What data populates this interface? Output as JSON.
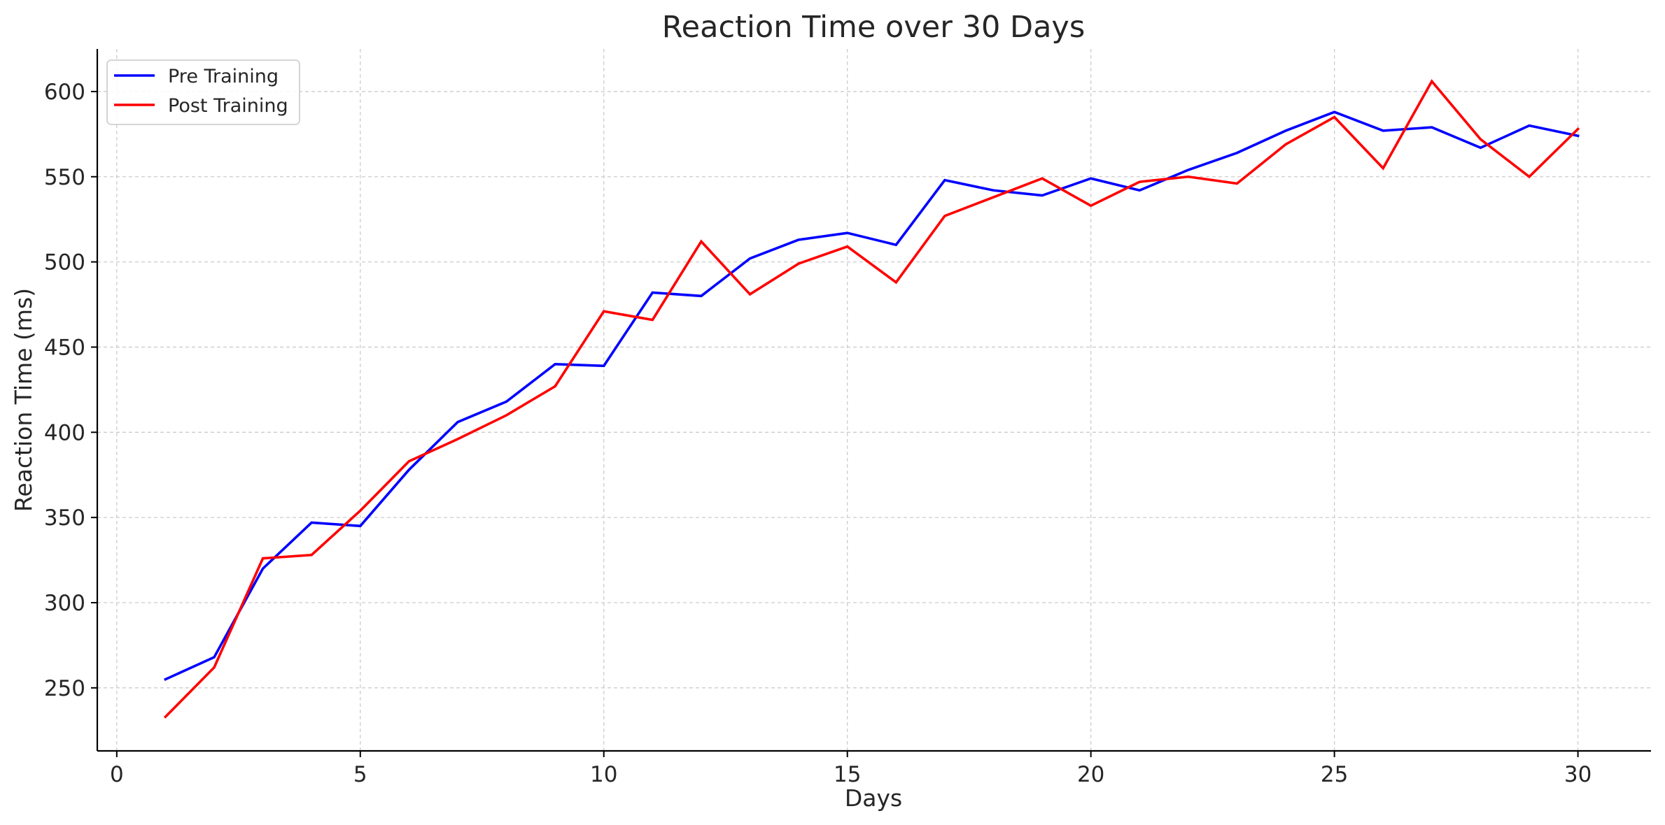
{
  "chart_data": {
    "type": "line",
    "title": "Reaction Time over 30 Days",
    "xlabel": "Days",
    "ylabel": "Reaction Time (ms)",
    "xlim": [
      -0.4,
      31.5
    ],
    "ylim": [
      213,
      625
    ],
    "xticks": [
      0,
      5,
      10,
      15,
      20,
      25,
      30
    ],
    "yticks": [
      250,
      300,
      350,
      400,
      450,
      500,
      550,
      600
    ],
    "grid": true,
    "legend_position": "top-left",
    "x": [
      1,
      2,
      3,
      4,
      5,
      6,
      7,
      8,
      9,
      10,
      11,
      12,
      13,
      14,
      15,
      16,
      17,
      18,
      19,
      20,
      21,
      22,
      23,
      24,
      25,
      26,
      27,
      28,
      29,
      30
    ],
    "series": [
      {
        "name": "Pre Training",
        "color": "#0000ff",
        "values": [
          255,
          268,
          320,
          347,
          345,
          378,
          406,
          418,
          440,
          439,
          482,
          480,
          502,
          513,
          517,
          510,
          548,
          542,
          539,
          549,
          542,
          554,
          564,
          577,
          588,
          577,
          579,
          567,
          580,
          574
        ]
      },
      {
        "name": "Post Training",
        "color": "#ff0000",
        "values": [
          233,
          262,
          326,
          328,
          354,
          383,
          396,
          410,
          427,
          471,
          466,
          512,
          481,
          499,
          509,
          488,
          527,
          538,
          549,
          533,
          547,
          550,
          546,
          569,
          585,
          555,
          606,
          572,
          550,
          578
        ]
      }
    ]
  }
}
